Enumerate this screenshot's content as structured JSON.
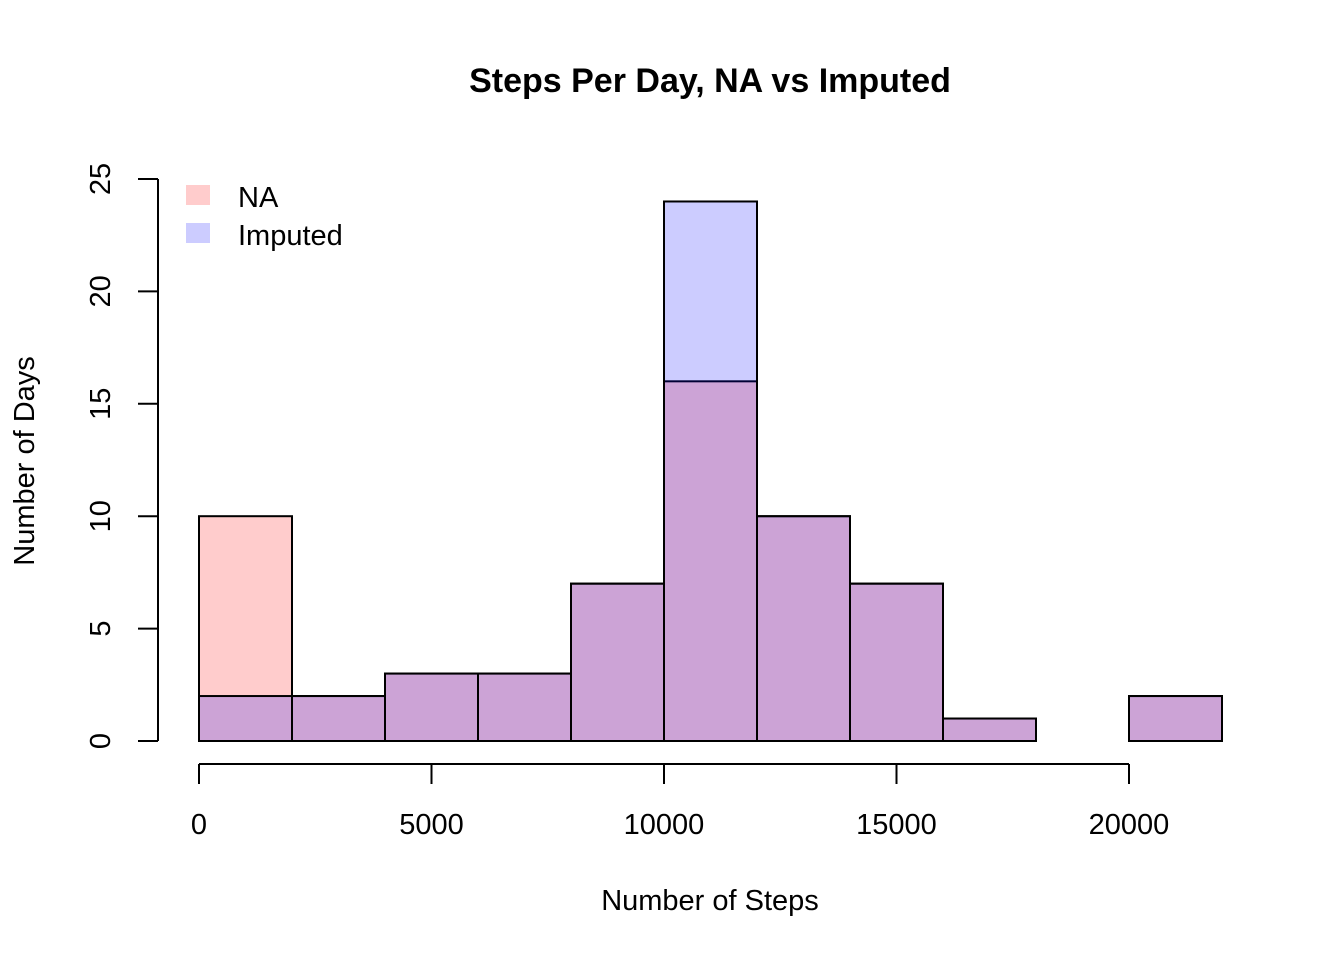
{
  "chart_data": {
    "type": "bar",
    "title": "Steps Per Day, NA vs Imputed",
    "xlabel": "Number of Steps",
    "ylabel": "Number of Days",
    "xlim": [
      0,
      22000
    ],
    "ylim": [
      0,
      25
    ],
    "xticks": [
      0,
      5000,
      10000,
      15000,
      20000
    ],
    "yticks": [
      0,
      5,
      10,
      15,
      20,
      25
    ],
    "bin_edges": [
      0,
      2000,
      4000,
      6000,
      8000,
      10000,
      12000,
      14000,
      16000,
      18000,
      20000,
      22000
    ],
    "series": [
      {
        "name": "NA",
        "color": "#ffcccc",
        "values": [
          10,
          2,
          3,
          3,
          7,
          16,
          10,
          7,
          1,
          0,
          2
        ]
      },
      {
        "name": "Imputed",
        "color": "#ccccff",
        "values": [
          2,
          2,
          3,
          3,
          7,
          24,
          10,
          7,
          1,
          0,
          2
        ]
      }
    ],
    "overlap_color": "#cca3d6",
    "legend": {
      "position": "top-left",
      "items": [
        {
          "label": "NA",
          "color": "#ffcccc"
        },
        {
          "label": "Imputed",
          "color": "#ccccff"
        }
      ]
    },
    "grid": false
  }
}
